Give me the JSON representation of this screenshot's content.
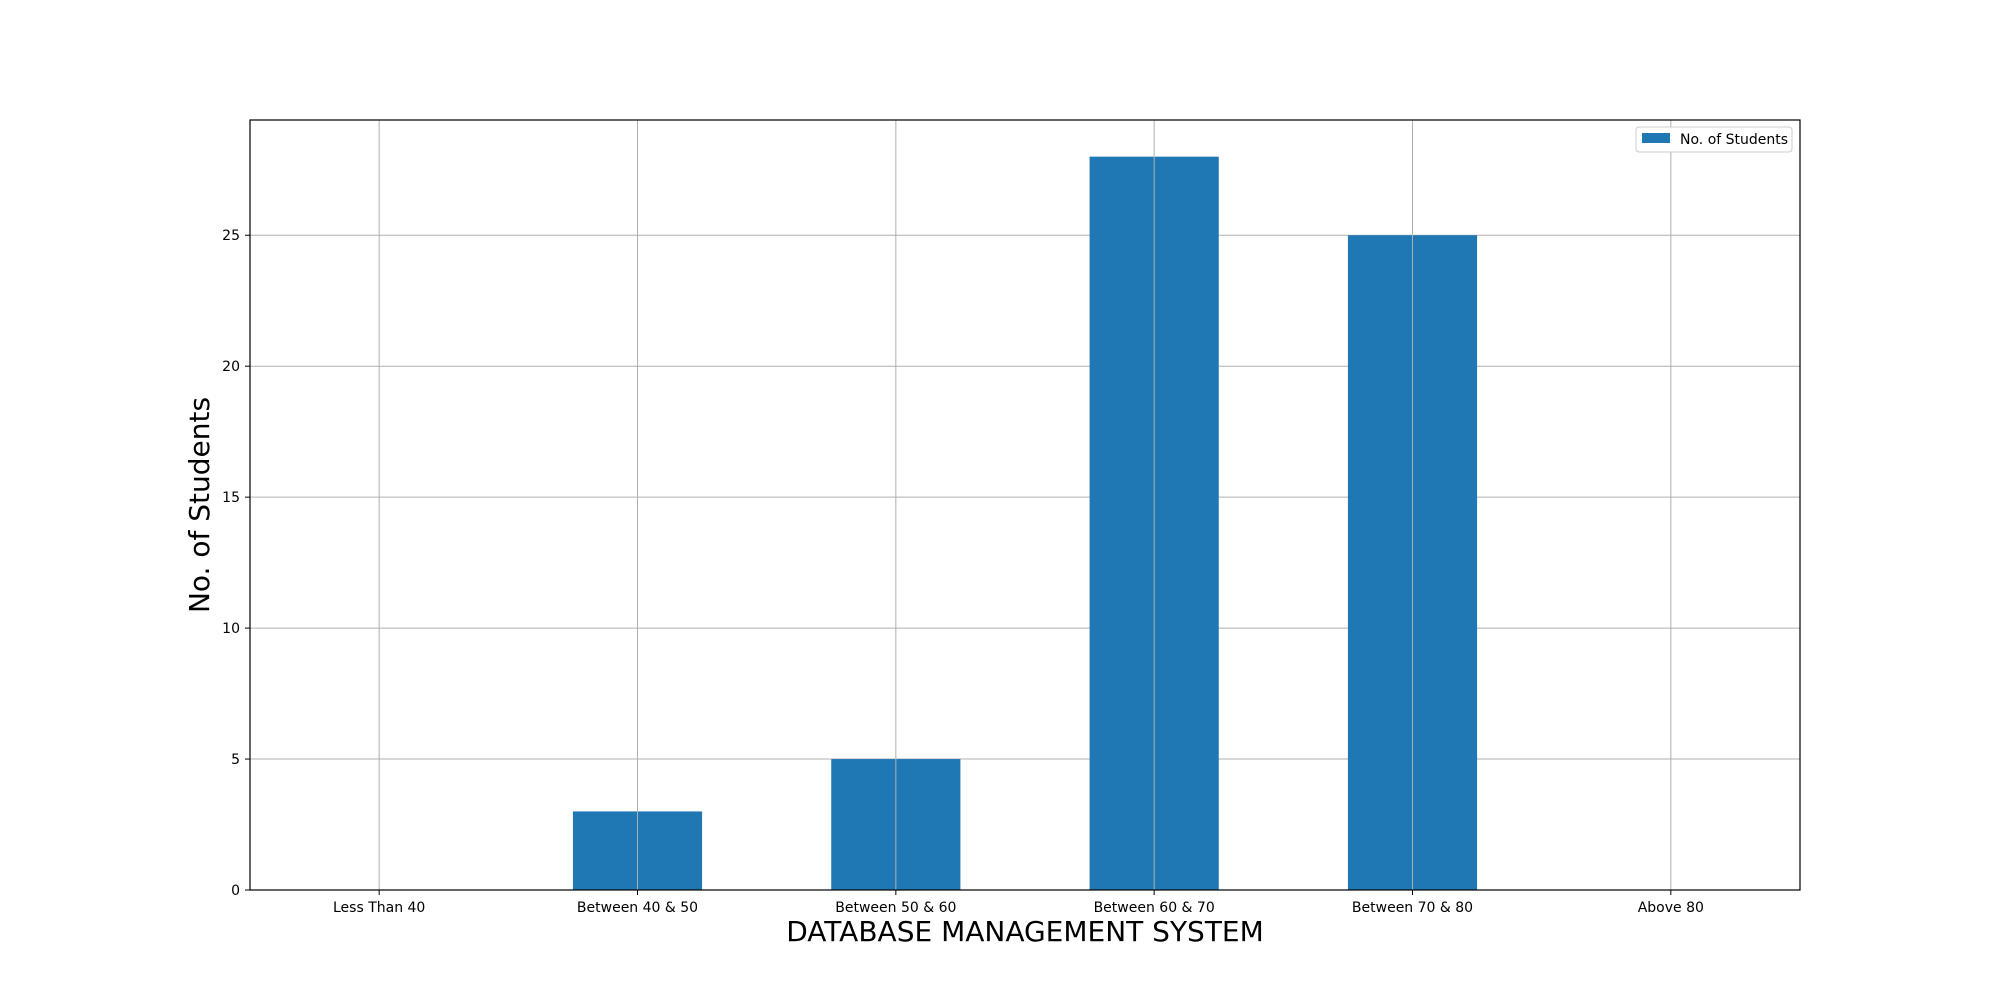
{
  "chart_data": {
    "type": "bar",
    "title": "",
    "xlabel": "DATABASE MANAGEMENT SYSTEM",
    "ylabel": "No. of Students",
    "categories": [
      "Less Than 40",
      "Between 40 & 50",
      "Between 50 & 60",
      "Between 60 & 70",
      "Between 70 & 80",
      "Above 80"
    ],
    "series": [
      {
        "name": "No. of Students",
        "values": [
          0,
          3,
          5,
          28,
          25,
          0
        ],
        "color": "#1f77b4"
      }
    ],
    "ylim": [
      0,
      29.4
    ],
    "yticks": [
      0,
      5,
      10,
      15,
      20,
      25
    ],
    "grid": true,
    "legend_position": "top-right"
  }
}
